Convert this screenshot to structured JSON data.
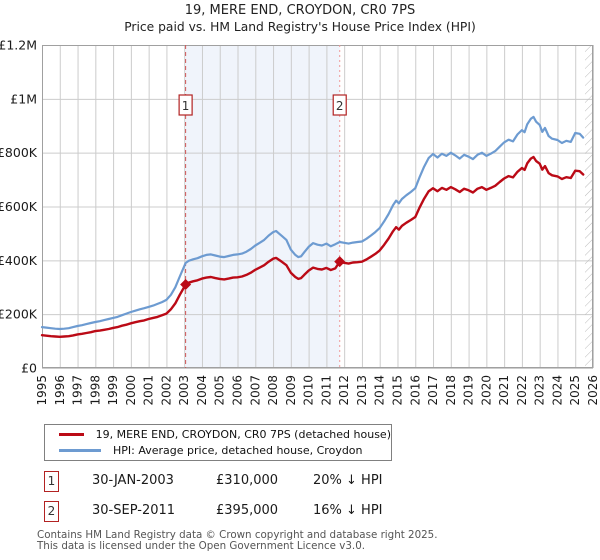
{
  "header": {
    "title": "19, MERE END, CROYDON, CR0 7PS",
    "subtitle": "Price paid vs. HM Land Registry's House Price Index (HPI)"
  },
  "legend": {
    "items": [
      {
        "label": "19, MERE END, CROYDON, CR0 7PS (detached house)",
        "color": "#bb0a16"
      },
      {
        "label": "HPI: Average price, detached house, Croydon",
        "color": "#6d9bd1"
      }
    ]
  },
  "sales": {
    "rows": [
      {
        "n": "1",
        "date": "30-JAN-2003",
        "price": "£310,000",
        "hpi_diff": "20% ↓ HPI"
      },
      {
        "n": "2",
        "date": "30-SEP-2011",
        "price": "£395,000",
        "hpi_diff": "16% ↓ HPI"
      }
    ]
  },
  "footer": {
    "line1": "Contains HM Land Registry data © Crown copyright and database right 2025.",
    "line2": "This data is licensed under the Open Government Licence v3.0."
  },
  "chart_data": {
    "type": "line",
    "unit": "GBP_thousands",
    "xlim": [
      1995,
      2026
    ],
    "ylim": [
      0,
      1200
    ],
    "grid": true,
    "xticks": [
      1995,
      1996,
      1997,
      1998,
      1999,
      2000,
      2001,
      2002,
      2003,
      2004,
      2005,
      2006,
      2007,
      2008,
      2009,
      2010,
      2011,
      2012,
      2013,
      2014,
      2015,
      2016,
      2017,
      2018,
      2019,
      2020,
      2021,
      2022,
      2023,
      2024,
      2025,
      2026
    ],
    "yticks": [
      {
        "v": 0,
        "label": "£0"
      },
      {
        "v": 200,
        "label": "£200K"
      },
      {
        "v": 400,
        "label": "£400K"
      },
      {
        "v": 600,
        "label": "£600K"
      },
      {
        "v": 800,
        "label": "£800K"
      },
      {
        "v": 1000,
        "label": "£1M"
      },
      {
        "v": 1200,
        "label": "£1.2M"
      }
    ],
    "colors": {
      "grid": "#cccccc",
      "border": "#a0a0a0",
      "shade": "#f0f4fb",
      "hatch": "#bbbbbb",
      "marker_box_border": "#b22222",
      "vline1": "#cc5555",
      "vline2": "#f09a9a"
    },
    "shaded_region": [
      2003.08,
      2011.75
    ],
    "future_hatch_start": 2025.55,
    "sale_markers": [
      {
        "n": "1",
        "year": 2003.08,
        "value": 310,
        "dash": "4,3",
        "line_color": "#cc5555"
      },
      {
        "n": "2",
        "year": 2011.75,
        "value": 395,
        "dash": "2,3",
        "line_color": "#f09a9a"
      }
    ],
    "series": [
      {
        "name": "hpi",
        "color": "#6d9bd1",
        "width": 2.2,
        "points": [
          [
            1995,
            152
          ],
          [
            1995.25,
            150
          ],
          [
            1995.5,
            148
          ],
          [
            1995.75,
            146
          ],
          [
            1996,
            145
          ],
          [
            1996.25,
            146
          ],
          [
            1996.5,
            148
          ],
          [
            1996.75,
            152
          ],
          [
            1997,
            156
          ],
          [
            1997.25,
            159
          ],
          [
            1997.5,
            163
          ],
          [
            1997.75,
            167
          ],
          [
            1998,
            171
          ],
          [
            1998.25,
            174
          ],
          [
            1998.5,
            178
          ],
          [
            1998.75,
            182
          ],
          [
            1999,
            186
          ],
          [
            1999.25,
            190
          ],
          [
            1999.5,
            196
          ],
          [
            1999.75,
            202
          ],
          [
            2000,
            208
          ],
          [
            2000.25,
            213
          ],
          [
            2000.5,
            218
          ],
          [
            2000.75,
            222
          ],
          [
            2001,
            227
          ],
          [
            2001.25,
            232
          ],
          [
            2001.5,
            238
          ],
          [
            2001.75,
            245
          ],
          [
            2002,
            253
          ],
          [
            2002.25,
            272
          ],
          [
            2002.5,
            300
          ],
          [
            2002.75,
            340
          ],
          [
            2003.08,
            390
          ],
          [
            2003.25,
            398
          ],
          [
            2003.5,
            404
          ],
          [
            2003.75,
            408
          ],
          [
            2004,
            415
          ],
          [
            2004.25,
            420
          ],
          [
            2004.5,
            422
          ],
          [
            2004.75,
            418
          ],
          [
            2005,
            414
          ],
          [
            2005.25,
            412
          ],
          [
            2005.5,
            416
          ],
          [
            2005.75,
            420
          ],
          [
            2006,
            422
          ],
          [
            2006.25,
            425
          ],
          [
            2006.5,
            432
          ],
          [
            2006.75,
            442
          ],
          [
            2007,
            455
          ],
          [
            2007.25,
            465
          ],
          [
            2007.5,
            476
          ],
          [
            2007.75,
            492
          ],
          [
            2008,
            505
          ],
          [
            2008.17,
            509
          ],
          [
            2008.33,
            500
          ],
          [
            2008.5,
            490
          ],
          [
            2008.75,
            476
          ],
          [
            2009,
            440
          ],
          [
            2009.25,
            420
          ],
          [
            2009.42,
            412
          ],
          [
            2009.58,
            415
          ],
          [
            2009.75,
            430
          ],
          [
            2010,
            450
          ],
          [
            2010.25,
            464
          ],
          [
            2010.5,
            458
          ],
          [
            2010.75,
            455
          ],
          [
            2011,
            462
          ],
          [
            2011.25,
            452
          ],
          [
            2011.5,
            460
          ],
          [
            2011.75,
            468
          ],
          [
            2012,
            465
          ],
          [
            2012.25,
            462
          ],
          [
            2012.5,
            466
          ],
          [
            2012.75,
            468
          ],
          [
            2013,
            470
          ],
          [
            2013.25,
            480
          ],
          [
            2013.5,
            492
          ],
          [
            2013.75,
            505
          ],
          [
            2014,
            520
          ],
          [
            2014.25,
            545
          ],
          [
            2014.5,
            572
          ],
          [
            2014.75,
            605
          ],
          [
            2014.92,
            622
          ],
          [
            2015.08,
            612
          ],
          [
            2015.25,
            628
          ],
          [
            2015.5,
            642
          ],
          [
            2015.75,
            654
          ],
          [
            2016,
            668
          ],
          [
            2016.25,
            710
          ],
          [
            2016.5,
            748
          ],
          [
            2016.75,
            780
          ],
          [
            2017,
            795
          ],
          [
            2017.25,
            782
          ],
          [
            2017.5,
            796
          ],
          [
            2017.75,
            788
          ],
          [
            2018,
            800
          ],
          [
            2018.25,
            790
          ],
          [
            2018.5,
            778
          ],
          [
            2018.75,
            792
          ],
          [
            2019,
            785
          ],
          [
            2019.25,
            776
          ],
          [
            2019.5,
            792
          ],
          [
            2019.75,
            800
          ],
          [
            2020,
            788
          ],
          [
            2020.25,
            796
          ],
          [
            2020.5,
            806
          ],
          [
            2020.75,
            822
          ],
          [
            2021,
            838
          ],
          [
            2021.25,
            848
          ],
          [
            2021.5,
            842
          ],
          [
            2021.75,
            868
          ],
          [
            2022,
            884
          ],
          [
            2022.15,
            876
          ],
          [
            2022.3,
            905
          ],
          [
            2022.5,
            926
          ],
          [
            2022.65,
            933
          ],
          [
            2022.8,
            915
          ],
          [
            2023,
            903
          ],
          [
            2023.15,
            877
          ],
          [
            2023.3,
            892
          ],
          [
            2023.5,
            862
          ],
          [
            2023.7,
            852
          ],
          [
            2024,
            847
          ],
          [
            2024.25,
            836
          ],
          [
            2024.5,
            844
          ],
          [
            2024.75,
            840
          ],
          [
            2025,
            873
          ],
          [
            2025.25,
            870
          ],
          [
            2025.45,
            856
          ]
        ]
      },
      {
        "name": "price",
        "color": "#bb0a16",
        "width": 2.4,
        "points": [
          [
            1995,
            122
          ],
          [
            1995.25,
            120
          ],
          [
            1995.5,
            118
          ],
          [
            1995.75,
            117
          ],
          [
            1996,
            116
          ],
          [
            1996.25,
            117
          ],
          [
            1996.5,
            118
          ],
          [
            1996.75,
            121
          ],
          [
            1997,
            125
          ],
          [
            1997.25,
            127
          ],
          [
            1997.5,
            130
          ],
          [
            1997.75,
            133
          ],
          [
            1998,
            137
          ],
          [
            1998.25,
            139
          ],
          [
            1998.5,
            142
          ],
          [
            1998.75,
            145
          ],
          [
            1999,
            149
          ],
          [
            1999.25,
            152
          ],
          [
            1999.5,
            157
          ],
          [
            1999.75,
            161
          ],
          [
            2000,
            166
          ],
          [
            2000.25,
            170
          ],
          [
            2000.5,
            174
          ],
          [
            2000.75,
            177
          ],
          [
            2001,
            182
          ],
          [
            2001.25,
            186
          ],
          [
            2001.5,
            190
          ],
          [
            2001.75,
            196
          ],
          [
            2002,
            202
          ],
          [
            2002.25,
            218
          ],
          [
            2002.5,
            240
          ],
          [
            2002.75,
            272
          ],
          [
            2003.08,
            310
          ],
          [
            2003.25,
            317
          ],
          [
            2003.5,
            322
          ],
          [
            2003.75,
            326
          ],
          [
            2004,
            332
          ],
          [
            2004.25,
            336
          ],
          [
            2004.5,
            338
          ],
          [
            2004.75,
            334
          ],
          [
            2005,
            331
          ],
          [
            2005.25,
            329
          ],
          [
            2005.5,
            332
          ],
          [
            2005.75,
            336
          ],
          [
            2006,
            337
          ],
          [
            2006.25,
            340
          ],
          [
            2006.5,
            346
          ],
          [
            2006.75,
            354
          ],
          [
            2007,
            365
          ],
          [
            2007.25,
            373
          ],
          [
            2007.5,
            382
          ],
          [
            2007.75,
            395
          ],
          [
            2008,
            406
          ],
          [
            2008.17,
            409
          ],
          [
            2008.33,
            402
          ],
          [
            2008.5,
            394
          ],
          [
            2008.75,
            382
          ],
          [
            2009,
            354
          ],
          [
            2009.25,
            338
          ],
          [
            2009.42,
            331
          ],
          [
            2009.58,
            334
          ],
          [
            2009.75,
            346
          ],
          [
            2010,
            362
          ],
          [
            2010.25,
            373
          ],
          [
            2010.5,
            368
          ],
          [
            2010.75,
            366
          ],
          [
            2011,
            372
          ],
          [
            2011.25,
            364
          ],
          [
            2011.5,
            370
          ],
          [
            2011.75,
            395
          ],
          [
            2012,
            391
          ],
          [
            2012.25,
            388
          ],
          [
            2012.5,
            392
          ],
          [
            2012.75,
            393
          ],
          [
            2013,
            395
          ],
          [
            2013.25,
            403
          ],
          [
            2013.5,
            413
          ],
          [
            2013.75,
            424
          ],
          [
            2014,
            437
          ],
          [
            2014.25,
            458
          ],
          [
            2014.5,
            481
          ],
          [
            2014.75,
            508
          ],
          [
            2014.92,
            523
          ],
          [
            2015.08,
            514
          ],
          [
            2015.25,
            528
          ],
          [
            2015.5,
            540
          ],
          [
            2015.75,
            550
          ],
          [
            2016,
            561
          ],
          [
            2016.25,
            597
          ],
          [
            2016.5,
            629
          ],
          [
            2016.75,
            656
          ],
          [
            2017,
            668
          ],
          [
            2017.25,
            657
          ],
          [
            2017.5,
            669
          ],
          [
            2017.75,
            662
          ],
          [
            2018,
            672
          ],
          [
            2018.25,
            664
          ],
          [
            2018.5,
            654
          ],
          [
            2018.75,
            666
          ],
          [
            2019,
            660
          ],
          [
            2019.25,
            652
          ],
          [
            2019.5,
            666
          ],
          [
            2019.75,
            672
          ],
          [
            2020,
            662
          ],
          [
            2020.25,
            669
          ],
          [
            2020.5,
            677
          ],
          [
            2020.75,
            691
          ],
          [
            2021,
            704
          ],
          [
            2021.25,
            713
          ],
          [
            2021.5,
            708
          ],
          [
            2021.75,
            729
          ],
          [
            2022,
            743
          ],
          [
            2022.15,
            736
          ],
          [
            2022.3,
            760
          ],
          [
            2022.5,
            778
          ],
          [
            2022.65,
            784
          ],
          [
            2022.8,
            769
          ],
          [
            2023,
            759
          ],
          [
            2023.15,
            737
          ],
          [
            2023.3,
            750
          ],
          [
            2023.5,
            724
          ],
          [
            2023.7,
            716
          ],
          [
            2024,
            712
          ],
          [
            2024.25,
            702
          ],
          [
            2024.5,
            709
          ],
          [
            2024.75,
            706
          ],
          [
            2025,
            733
          ],
          [
            2025.25,
            731
          ],
          [
            2025.45,
            719
          ]
        ]
      }
    ]
  }
}
